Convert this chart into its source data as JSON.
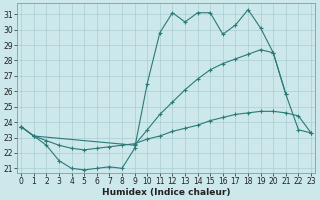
{
  "xlabel": "Humidex (Indice chaleur)",
  "bg_color": "#cce8ea",
  "grid_color": "#aacdd2",
  "line_color": "#2a7a78",
  "x_ticks": [
    0,
    1,
    2,
    3,
    4,
    5,
    6,
    7,
    8,
    9,
    10,
    11,
    12,
    13,
    14,
    15,
    16,
    17,
    18,
    19,
    20,
    21,
    22,
    23
  ],
  "y_ticks": [
    21,
    22,
    23,
    24,
    25,
    26,
    27,
    28,
    29,
    30,
    31
  ],
  "ylim": [
    20.7,
    31.7
  ],
  "xlim": [
    -0.3,
    23.3
  ],
  "series": [
    {
      "x": [
        0,
        1,
        2,
        3,
        4,
        5,
        6,
        7,
        8,
        9,
        10,
        11,
        12,
        13,
        14,
        15,
        16,
        17,
        18,
        19,
        20,
        21
      ],
      "y": [
        23.7,
        23.1,
        22.5,
        21.5,
        21.0,
        20.9,
        21.0,
        21.1,
        21.0,
        22.3,
        26.5,
        29.8,
        31.1,
        30.5,
        31.1,
        31.1,
        29.7,
        30.3,
        31.3,
        30.1,
        28.5,
        25.8
      ]
    },
    {
      "x": [
        0,
        1,
        9,
        10,
        11,
        12,
        13,
        14,
        15,
        16,
        17,
        18,
        19,
        20,
        21,
        22,
        23
      ],
      "y": [
        23.7,
        23.1,
        22.5,
        23.5,
        24.5,
        25.3,
        26.1,
        26.8,
        27.4,
        27.8,
        28.1,
        28.4,
        28.7,
        28.5,
        25.8,
        23.5,
        23.3
      ]
    },
    {
      "x": [
        0,
        1,
        2,
        3,
        4,
        5,
        6,
        7,
        8,
        9,
        10,
        11,
        12,
        13,
        14,
        15,
        16,
        17,
        18,
        19,
        20,
        21,
        22,
        23
      ],
      "y": [
        23.7,
        23.1,
        22.8,
        22.5,
        22.3,
        22.2,
        22.3,
        22.4,
        22.5,
        22.6,
        22.9,
        23.1,
        23.4,
        23.6,
        23.8,
        24.1,
        24.3,
        24.5,
        24.6,
        24.7,
        24.7,
        24.6,
        24.4,
        23.3
      ]
    }
  ]
}
